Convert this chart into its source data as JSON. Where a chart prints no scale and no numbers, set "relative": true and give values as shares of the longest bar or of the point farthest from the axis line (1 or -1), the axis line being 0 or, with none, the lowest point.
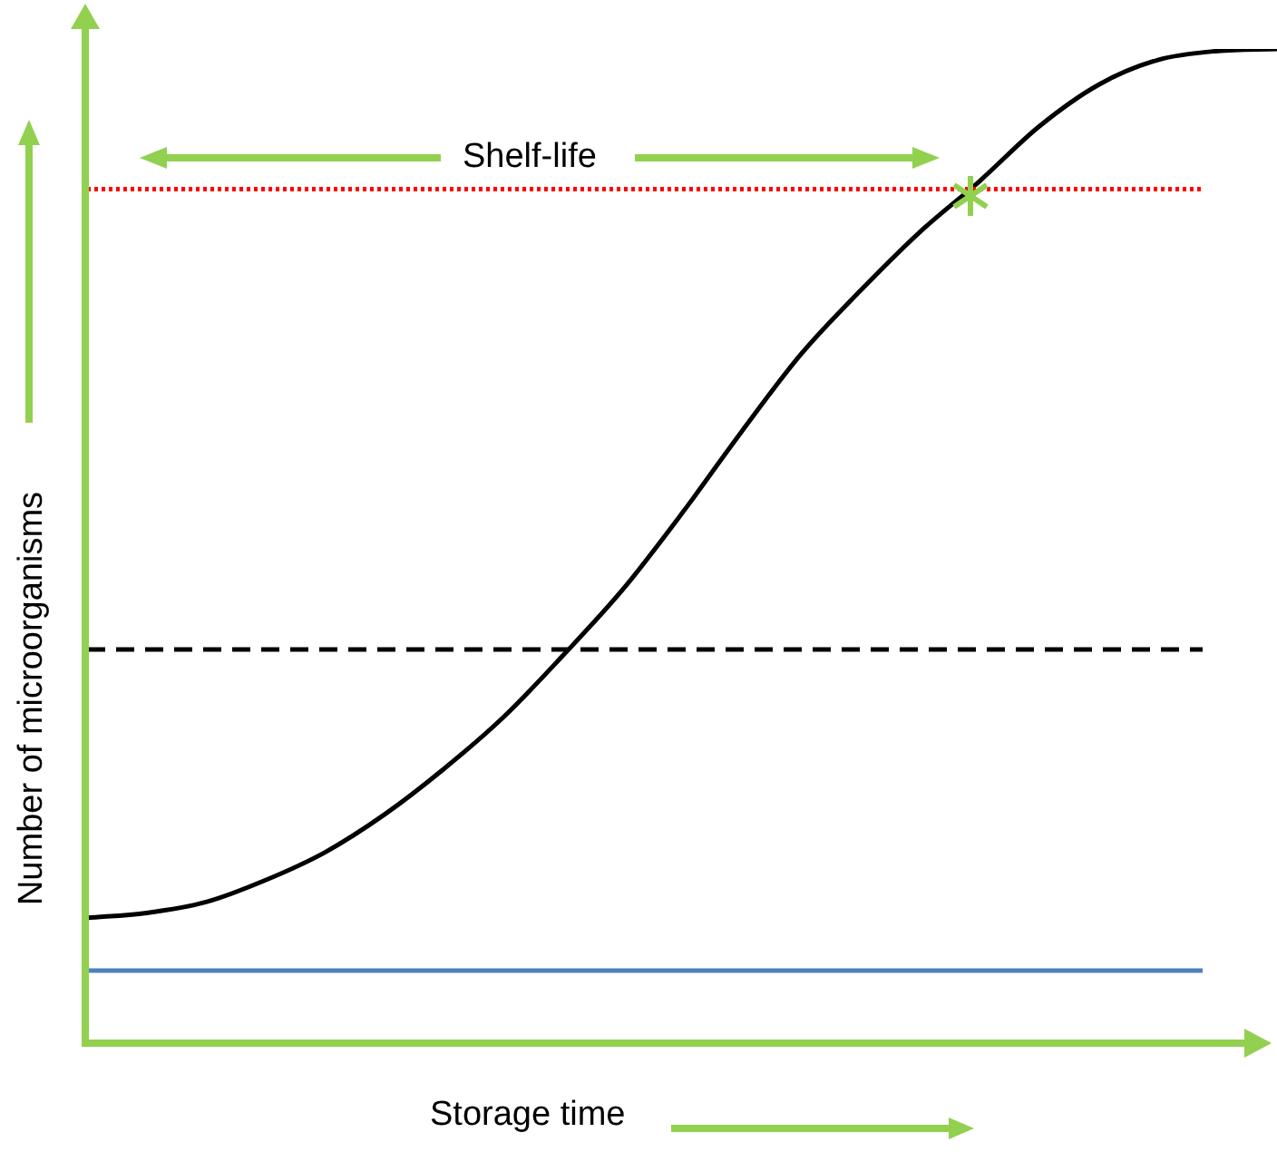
{
  "chart_data": {
    "type": "line",
    "relative": true,
    "xlabel": "Storage time",
    "ylabel": "Number of microorganisms",
    "annotations": [
      "Shelf-life"
    ],
    "categories": [
      null,
      null,
      null,
      null,
      null,
      null,
      null,
      null,
      null,
      null,
      null,
      null,
      null,
      null,
      null,
      null,
      null,
      null,
      null,
      null,
      null
    ],
    "series": [
      {
        "color": "#000000",
        "values": [
          0.126,
          0.131,
          0.142,
          0.164,
          0.192,
          0.23,
          0.276,
          0.328,
          0.39,
          0.456,
          0.533,
          0.615,
          0.693,
          0.757,
          0.816,
          0.867,
          0.922,
          0.964,
          0.989,
          0.998,
          1
        ]
      }
    ],
    "ref_lines": [
      {
        "axis": "y",
        "value": 0.859,
        "color": "#ff0000",
        "line_style": "dotted"
      },
      {
        "axis": "y",
        "value": 0.396,
        "color": "#000000",
        "line_style": "dashed"
      },
      {
        "axis": "y",
        "value": 0.073,
        "color": "#4f81bd",
        "line_style": "solid"
      }
    ],
    "grid": false,
    "legend": false,
    "marker": "none",
    "line_style": "solid"
  }
}
